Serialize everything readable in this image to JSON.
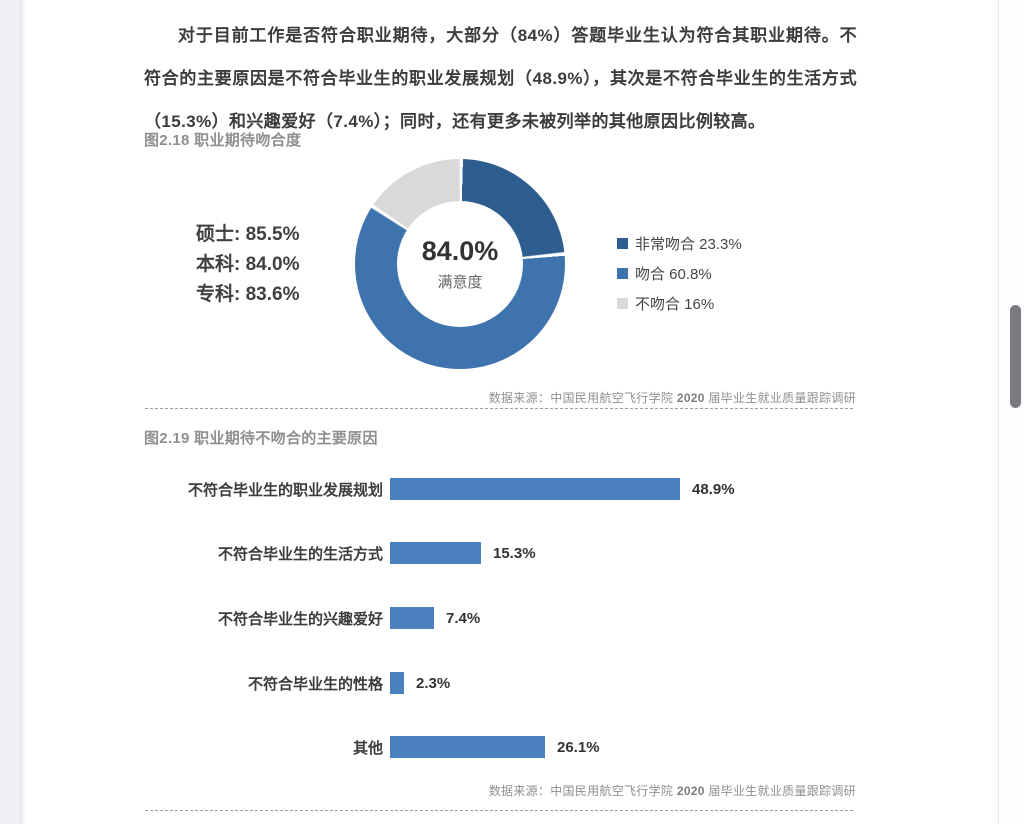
{
  "page": {
    "paragraph": "对于目前工作是否符合职业期待，大部分（84%）答题毕业生认为符合其职业期待。不符合的主要原因是不符合毕业生的职业发展规划（48.9%），其次是不符合毕业生的生活方式（15.3%）和兴趣爱好（7.4%）；同时，还有更多未被列举的其他原因比例较高。"
  },
  "colors": {
    "dark_blue": "#2e5e90",
    "mid_blue": "#3e73ae",
    "light_gray": "#d9d9d9",
    "bar_blue": "#4a80be"
  },
  "fig1": {
    "title": "图2.18 职业期待吻合度",
    "center_value": "84.0%",
    "center_label": "满意度",
    "side_stats": [
      "硕士: 85.5%",
      "本科: 84.0%",
      "专科: 83.6%"
    ],
    "legend": [
      {
        "label": "非常吻合 23.3%",
        "color": "#2e5e90"
      },
      {
        "label": "吻合 60.8%",
        "color": "#3e73ae"
      },
      {
        "label": "不吻合 16%",
        "color": "#d9d9d9"
      }
    ],
    "source_parts": [
      "数据来源：中国民用航空飞行学院 ",
      "2020",
      " 届毕业生就业质量跟踪调研"
    ]
  },
  "fig2": {
    "title": "图2.19 职业期待不吻合的主要原因",
    "source_parts": [
      "数据来源：中国民用航空飞行学院 ",
      "2020",
      " 届毕业生就业质量跟踪调研"
    ]
  },
  "chart_data": [
    {
      "type": "pie",
      "subtype": "donut",
      "title": "图2.18 职业期待吻合度",
      "labels": [
        "非常吻合",
        "吻合",
        "不吻合"
      ],
      "values": [
        23.3,
        60.8,
        16
      ],
      "colors": [
        "#2e5e90",
        "#3e73ae",
        "#d9d9d9"
      ],
      "center_value": "84.0%",
      "center_label": "满意度",
      "side_annotations": [
        "硕士: 85.5%",
        "本科: 84.0%",
        "专科: 83.6%"
      ],
      "legend_position": "right",
      "start_angle_deg": 0,
      "direction": "clockwise",
      "source": "数据来源：中国民用航空飞行学院 2020 届毕业生就业质量跟踪调研"
    },
    {
      "type": "bar",
      "orientation": "horizontal",
      "title": "图2.19 职业期待不吻合的主要原因",
      "categories": [
        "不符合毕业生的职业发展规划",
        "不符合毕业生的生活方式",
        "不符合毕业生的兴趣爱好",
        "不符合毕业生的性格",
        "其他"
      ],
      "values": [
        48.9,
        15.3,
        7.4,
        2.3,
        26.1
      ],
      "value_labels": [
        "48.9%",
        "15.3%",
        "7.4%",
        "2.3%",
        "26.1%"
      ],
      "bar_color": "#4a80be",
      "grid": false,
      "source": "数据来源：中国民用航空飞行学院 2020 届毕业生就业质量跟踪调研"
    }
  ],
  "scrollbar": {
    "visible": true
  }
}
